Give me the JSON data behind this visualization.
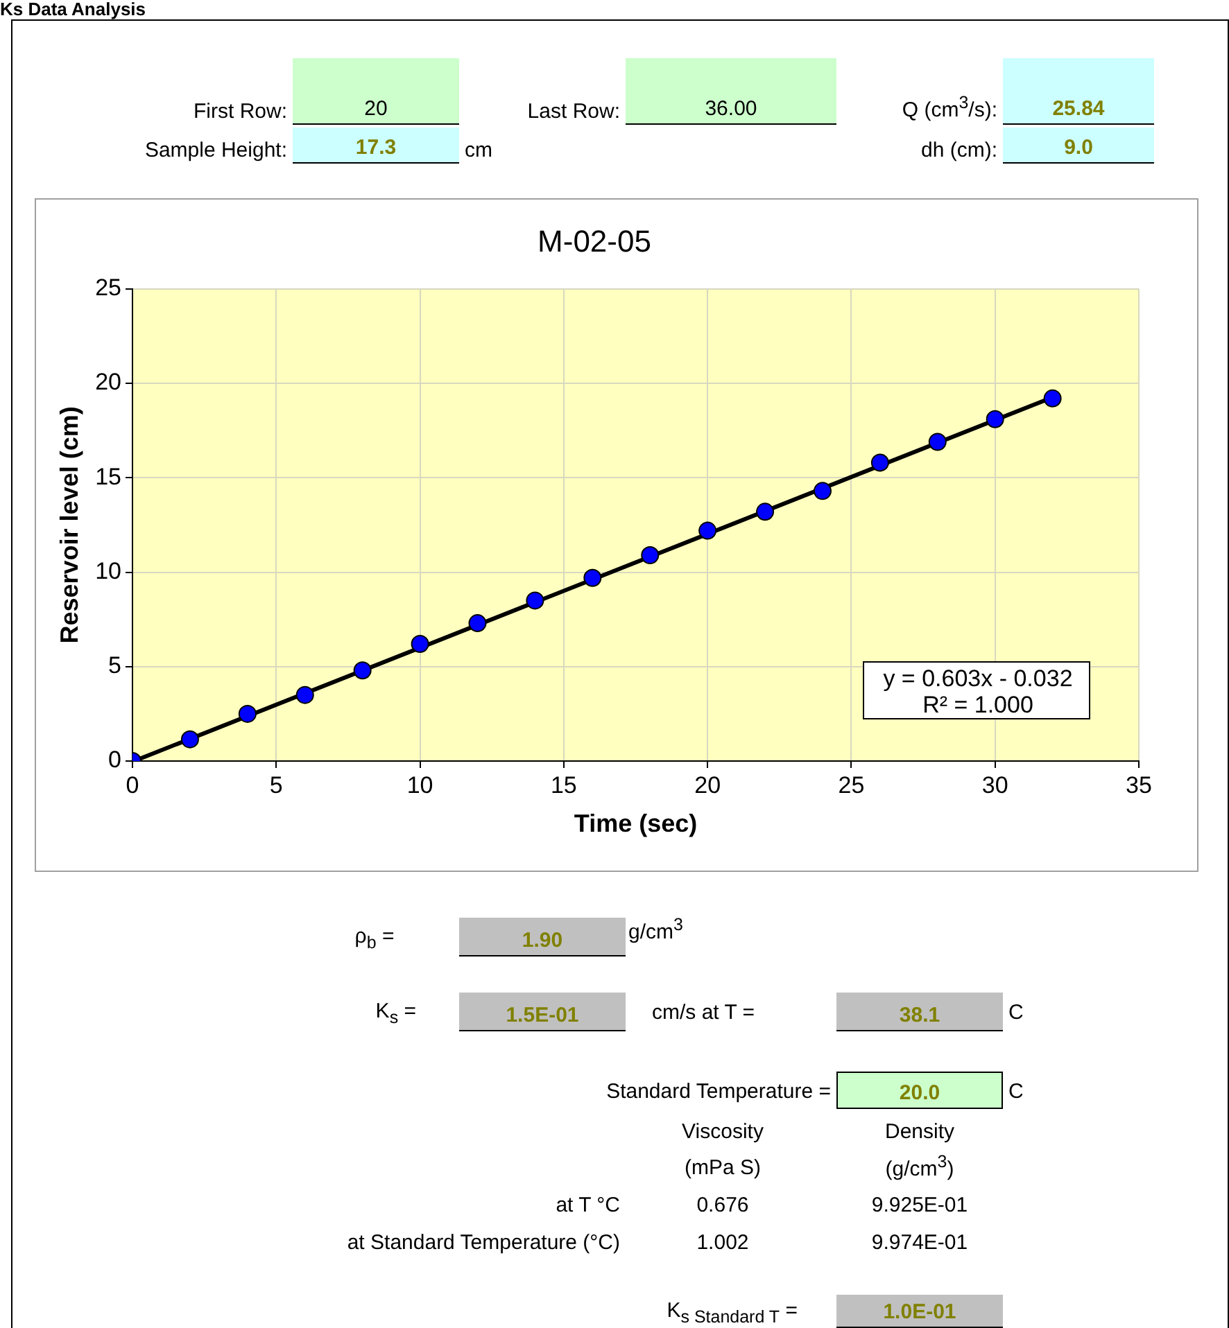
{
  "chart_data": {
    "type": "scatter",
    "title": "M-02-05",
    "xlabel": "Time (sec)",
    "ylabel": "Reservoir level (cm)",
    "x": [
      0,
      2,
      4,
      6,
      8,
      10,
      12,
      14,
      16,
      18,
      20,
      22,
      24,
      26,
      28,
      30,
      32
    ],
    "series": [
      {
        "type": "scatter",
        "marker": "circle",
        "color": "#0000ff",
        "values": [
          0,
          1.15,
          2.5,
          3.5,
          4.8,
          6.2,
          7.3,
          8.5,
          9.7,
          10.9,
          12.2,
          13.2,
          14.3,
          15.8,
          16.9,
          18.1,
          19.2
        ]
      },
      {
        "type": "line",
        "marker": "none",
        "color": "#000000",
        "x": [
          0.053,
          32
        ],
        "values": [
          0,
          19.26
        ]
      }
    ],
    "xlim": [
      0,
      35
    ],
    "xticks": [
      0,
      5,
      10,
      15,
      20,
      25,
      30,
      35
    ],
    "ylim": [
      0,
      25
    ],
    "yticks": [
      0,
      5,
      10,
      15,
      20,
      25
    ],
    "grid": true,
    "legend": false,
    "annotations": [
      "Ks Data Analysis",
      "First Row:",
      "20",
      "Last Row:",
      "36.00",
      "Q (cm$^{3}$/s):",
      "25.84",
      "Sample Height:",
      "17.3",
      "cm",
      "dh (cm):",
      "9.0",
      "y = 0.603x - 0.032",
      "R² = 1.000",
      "ρ$_{b}$ =",
      "1.90",
      "g/cm$^{3}$",
      "K$_{s}$ =",
      "1.5E-01",
      "cm/s  at T =",
      "38.1",
      "C",
      "Standard Temperature =",
      "20.0",
      "C",
      "Viscosity",
      "(mPa S)",
      "Density",
      "(g/cm$^{3}$)",
      "at T °C",
      "0.676",
      "9.925E-01",
      "at Standard Temperature (°C)",
      "1.002",
      "9.974E-01",
      "K$_{s Standard T}$ =",
      "1.0E-01"
    ]
  }
}
